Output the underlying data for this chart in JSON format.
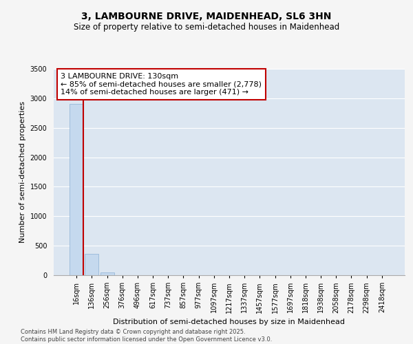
{
  "title": "3, LAMBOURNE DRIVE, MAIDENHEAD, SL6 3HN",
  "subtitle": "Size of property relative to semi-detached houses in Maidenhead",
  "xlabel": "Distribution of semi-detached houses by size in Maidenhead",
  "ylabel": "Number of semi-detached properties",
  "bin_labels": [
    "16sqm",
    "136sqm",
    "256sqm",
    "376sqm",
    "496sqm",
    "617sqm",
    "737sqm",
    "857sqm",
    "977sqm",
    "1097sqm",
    "1217sqm",
    "1337sqm",
    "1457sqm",
    "1577sqm",
    "1697sqm",
    "1818sqm",
    "1938sqm",
    "2058sqm",
    "2178sqm",
    "2298sqm",
    "2418sqm"
  ],
  "bar_values": [
    2900,
    360,
    50,
    0,
    0,
    0,
    0,
    0,
    0,
    0,
    0,
    0,
    0,
    0,
    0,
    0,
    0,
    0,
    0,
    0,
    0
  ],
  "bar_color": "#c5d9ee",
  "bar_edge_color": "#8ab0d4",
  "background_color": "#dce6f1",
  "grid_color": "#ffffff",
  "annotation_line1": "3 LAMBOURNE DRIVE: 130sqm",
  "annotation_line2": "← 85% of semi-detached houses are smaller (2,778)",
  "annotation_line3": "14% of semi-detached houses are larger (471) →",
  "vline_color": "#c00000",
  "annotation_box_edgecolor": "#c00000",
  "ylim": [
    0,
    3500
  ],
  "yticks": [
    0,
    500,
    1000,
    1500,
    2000,
    2500,
    3000,
    3500
  ],
  "footer_text": "Contains HM Land Registry data © Crown copyright and database right 2025.\nContains public sector information licensed under the Open Government Licence v3.0.",
  "title_fontsize": 10,
  "subtitle_fontsize": 8.5,
  "axis_label_fontsize": 8,
  "tick_fontsize": 7,
  "annotation_fontsize": 8,
  "footer_fontsize": 6,
  "fig_bg": "#f5f5f5"
}
